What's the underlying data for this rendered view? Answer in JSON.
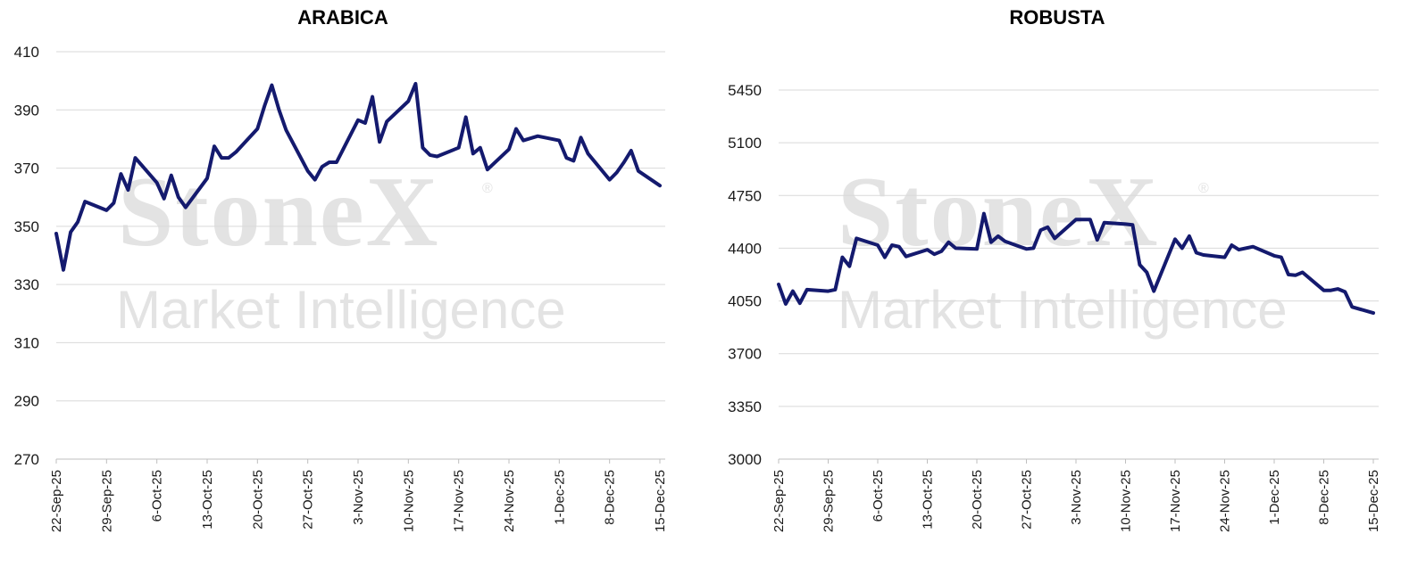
{
  "watermark": {
    "brand": "StoneX",
    "registered": "®",
    "tagline": "Market Intelligence"
  },
  "chart_data": [
    {
      "type": "line",
      "title": "ARABICA",
      "ylim": [
        270,
        410
      ],
      "yticks": [
        270,
        290,
        310,
        330,
        350,
        370,
        390,
        410
      ],
      "xtick_labels": [
        "22-Sep-25",
        "29-Sep-25",
        "6-Oct-25",
        "13-Oct-25",
        "20-Oct-25",
        "27-Oct-25",
        "3-Nov-25",
        "10-Nov-25",
        "17-Nov-25",
        "24-Nov-25",
        "1-Dec-25",
        "8-Dec-25",
        "15-Dec-25"
      ],
      "grid": true,
      "line_color": "#141a6e",
      "series": [
        {
          "x": [
            "22-Sep-25",
            "23-Sep-25",
            "24-Sep-25",
            "25-Sep-25",
            "26-Sep-25",
            "29-Sep-25",
            "30-Sep-25",
            "1-Oct-25",
            "2-Oct-25",
            "3-Oct-25",
            "6-Oct-25",
            "7-Oct-25",
            "8-Oct-25",
            "9-Oct-25",
            "10-Oct-25",
            "13-Oct-25",
            "14-Oct-25",
            "15-Oct-25",
            "16-Oct-25",
            "17-Oct-25",
            "20-Oct-25",
            "21-Oct-25",
            "22-Oct-25",
            "23-Oct-25",
            "24-Oct-25",
            "27-Oct-25",
            "28-Oct-25",
            "29-Oct-25",
            "30-Oct-25",
            "31-Oct-25",
            "3-Nov-25",
            "4-Nov-25",
            "5-Nov-25",
            "6-Nov-25",
            "7-Nov-25",
            "10-Nov-25",
            "11-Nov-25",
            "12-Nov-25",
            "13-Nov-25",
            "14-Nov-25",
            "17-Nov-25",
            "18-Nov-25",
            "19-Nov-25",
            "20-Nov-25",
            "21-Nov-25",
            "24-Nov-25",
            "25-Nov-25",
            "26-Nov-25",
            "28-Nov-25",
            "1-Dec-25",
            "2-Dec-25",
            "3-Dec-25",
            "4-Dec-25",
            "5-Dec-25",
            "8-Dec-25",
            "9-Dec-25",
            "10-Dec-25",
            "11-Dec-25",
            "12-Dec-25",
            "15-Dec-25"
          ],
          "values": [
            347.5,
            335,
            348,
            351.5,
            358.5,
            355.5,
            358,
            368,
            362.5,
            373.5,
            365,
            359.5,
            367.5,
            360,
            356.5,
            366.5,
            377.5,
            373.5,
            373.5,
            375.5,
            383.5,
            391.5,
            398.5,
            390,
            383,
            369,
            366,
            370.5,
            372,
            372,
            386.5,
            385.5,
            394.5,
            379,
            386,
            393,
            399,
            377,
            374.5,
            374,
            377,
            387.5,
            375,
            377,
            369.5,
            376.5,
            383.5,
            379.5,
            381,
            379.5,
            373.5,
            372.5,
            380.5,
            375,
            366,
            368.5,
            372,
            376,
            369,
            364
          ]
        }
      ]
    },
    {
      "type": "line",
      "title": "ROBUSTA",
      "ylim": [
        3000,
        5450
      ],
      "yticks": [
        3000,
        3350,
        3700,
        4050,
        4400,
        4750,
        5100,
        5450
      ],
      "xtick_labels": [
        "22-Sep-25",
        "29-Sep-25",
        "6-Oct-25",
        "13-Oct-25",
        "20-Oct-25",
        "27-Oct-25",
        "3-Nov-25",
        "10-Nov-25",
        "17-Nov-25",
        "24-Nov-25",
        "1-Dec-25",
        "8-Dec-25",
        "15-Dec-25"
      ],
      "grid": true,
      "line_color": "#141a6e",
      "series": [
        {
          "x": [
            "22-Sep-25",
            "23-Sep-25",
            "24-Sep-25",
            "25-Sep-25",
            "26-Sep-25",
            "29-Sep-25",
            "30-Sep-25",
            "1-Oct-25",
            "2-Oct-25",
            "3-Oct-25",
            "6-Oct-25",
            "7-Oct-25",
            "8-Oct-25",
            "9-Oct-25",
            "10-Oct-25",
            "13-Oct-25",
            "14-Oct-25",
            "15-Oct-25",
            "16-Oct-25",
            "17-Oct-25",
            "20-Oct-25",
            "21-Oct-25",
            "22-Oct-25",
            "23-Oct-25",
            "24-Oct-25",
            "27-Oct-25",
            "28-Oct-25",
            "29-Oct-25",
            "30-Oct-25",
            "31-Oct-25",
            "3-Nov-25",
            "4-Nov-25",
            "5-Nov-25",
            "6-Nov-25",
            "7-Nov-25",
            "10-Nov-25",
            "11-Nov-25",
            "12-Nov-25",
            "13-Nov-25",
            "14-Nov-25",
            "17-Nov-25",
            "18-Nov-25",
            "19-Nov-25",
            "20-Nov-25",
            "21-Nov-25",
            "24-Nov-25",
            "25-Nov-25",
            "26-Nov-25",
            "28-Nov-25",
            "1-Dec-25",
            "2-Dec-25",
            "3-Dec-25",
            "4-Dec-25",
            "5-Dec-25",
            "8-Dec-25",
            "9-Dec-25",
            "10-Dec-25",
            "11-Dec-25",
            "12-Dec-25",
            "15-Dec-25"
          ],
          "values": [
            4160,
            4030,
            4115,
            4035,
            4125,
            4115,
            4125,
            4340,
            4280,
            4465,
            4420,
            4340,
            4420,
            4410,
            4345,
            4390,
            4360,
            4380,
            4440,
            4400,
            4395,
            4630,
            4440,
            4480,
            4445,
            4395,
            4400,
            4520,
            4540,
            4465,
            4590,
            4590,
            4590,
            4455,
            4570,
            4560,
            4555,
            4290,
            4240,
            4115,
            4460,
            4400,
            4480,
            4370,
            4355,
            4340,
            4420,
            4390,
            4410,
            4350,
            4340,
            4225,
            4220,
            4240,
            4120,
            4120,
            4130,
            4110,
            4010,
            3970
          ]
        }
      ]
    }
  ]
}
